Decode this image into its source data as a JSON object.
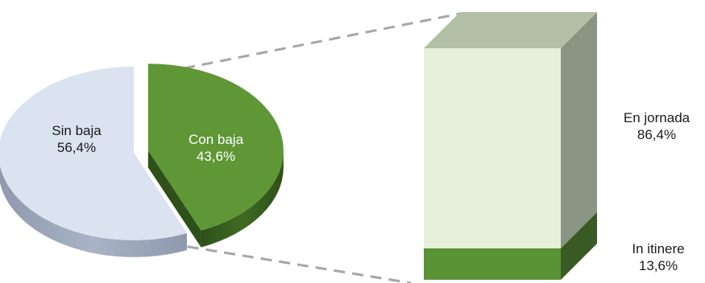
{
  "chart_data": [
    {
      "type": "pie",
      "categories": [
        "Sin baja",
        "Con baja"
      ],
      "values": [
        56.4,
        43.6
      ],
      "labels": [
        "56,4%",
        "43,6%"
      ],
      "colors": {
        "Sin baja": {
          "top": "#dbe2f0",
          "side": "#a9b3c6",
          "dark": "#8f99ad"
        },
        "Con baja": {
          "top": "#5f9636",
          "side": "#3f6a22",
          "dark": "#2e5019"
        }
      }
    },
    {
      "type": "bar",
      "stacked": true,
      "categories": [
        "In itinere",
        "En jornada"
      ],
      "values": [
        13.6,
        86.4
      ],
      "labels": [
        "13,6%",
        "86,4%"
      ],
      "colors": {
        "En jornada": {
          "front": "#e6f0da",
          "top": "#b3bfa6",
          "side": "#8b9584"
        },
        "In itinere": {
          "front": "#5a9236",
          "top": "#4e7f2e",
          "side": "#3a5a24"
        }
      }
    }
  ]
}
